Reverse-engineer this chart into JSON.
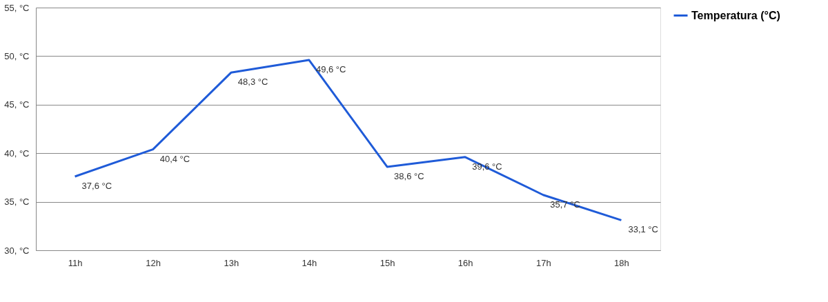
{
  "chart_data": {
    "type": "line",
    "categories": [
      "11h",
      "12h",
      "13h",
      "14h",
      "15h",
      "16h",
      "17h",
      "18h"
    ],
    "series": [
      {
        "name": "Temperatura (°C)",
        "color": "#1f5bd8",
        "values": [
          37.6,
          40.4,
          48.3,
          49.6,
          38.6,
          39.6,
          35.7,
          33.1
        ],
        "value_labels": [
          "37,6 °C",
          "40,4 °C",
          "48,3 °C",
          "49,6 °C",
          "38,6 °C",
          "39,6 °C",
          "35,7 °C",
          "33,1 °C"
        ]
      }
    ],
    "ylim": [
      30,
      55
    ],
    "yticks": [
      {
        "value": 30,
        "label": "30, °C"
      },
      {
        "value": 35,
        "label": "35, °C"
      },
      {
        "value": 40,
        "label": "40, °C"
      },
      {
        "value": 45,
        "label": "45, °C"
      },
      {
        "value": 50,
        "label": "50, °C"
      },
      {
        "value": 55,
        "label": "55, °C"
      }
    ],
    "grid": "y",
    "legend": "right",
    "marker": "none",
    "line_style": "solid"
  }
}
